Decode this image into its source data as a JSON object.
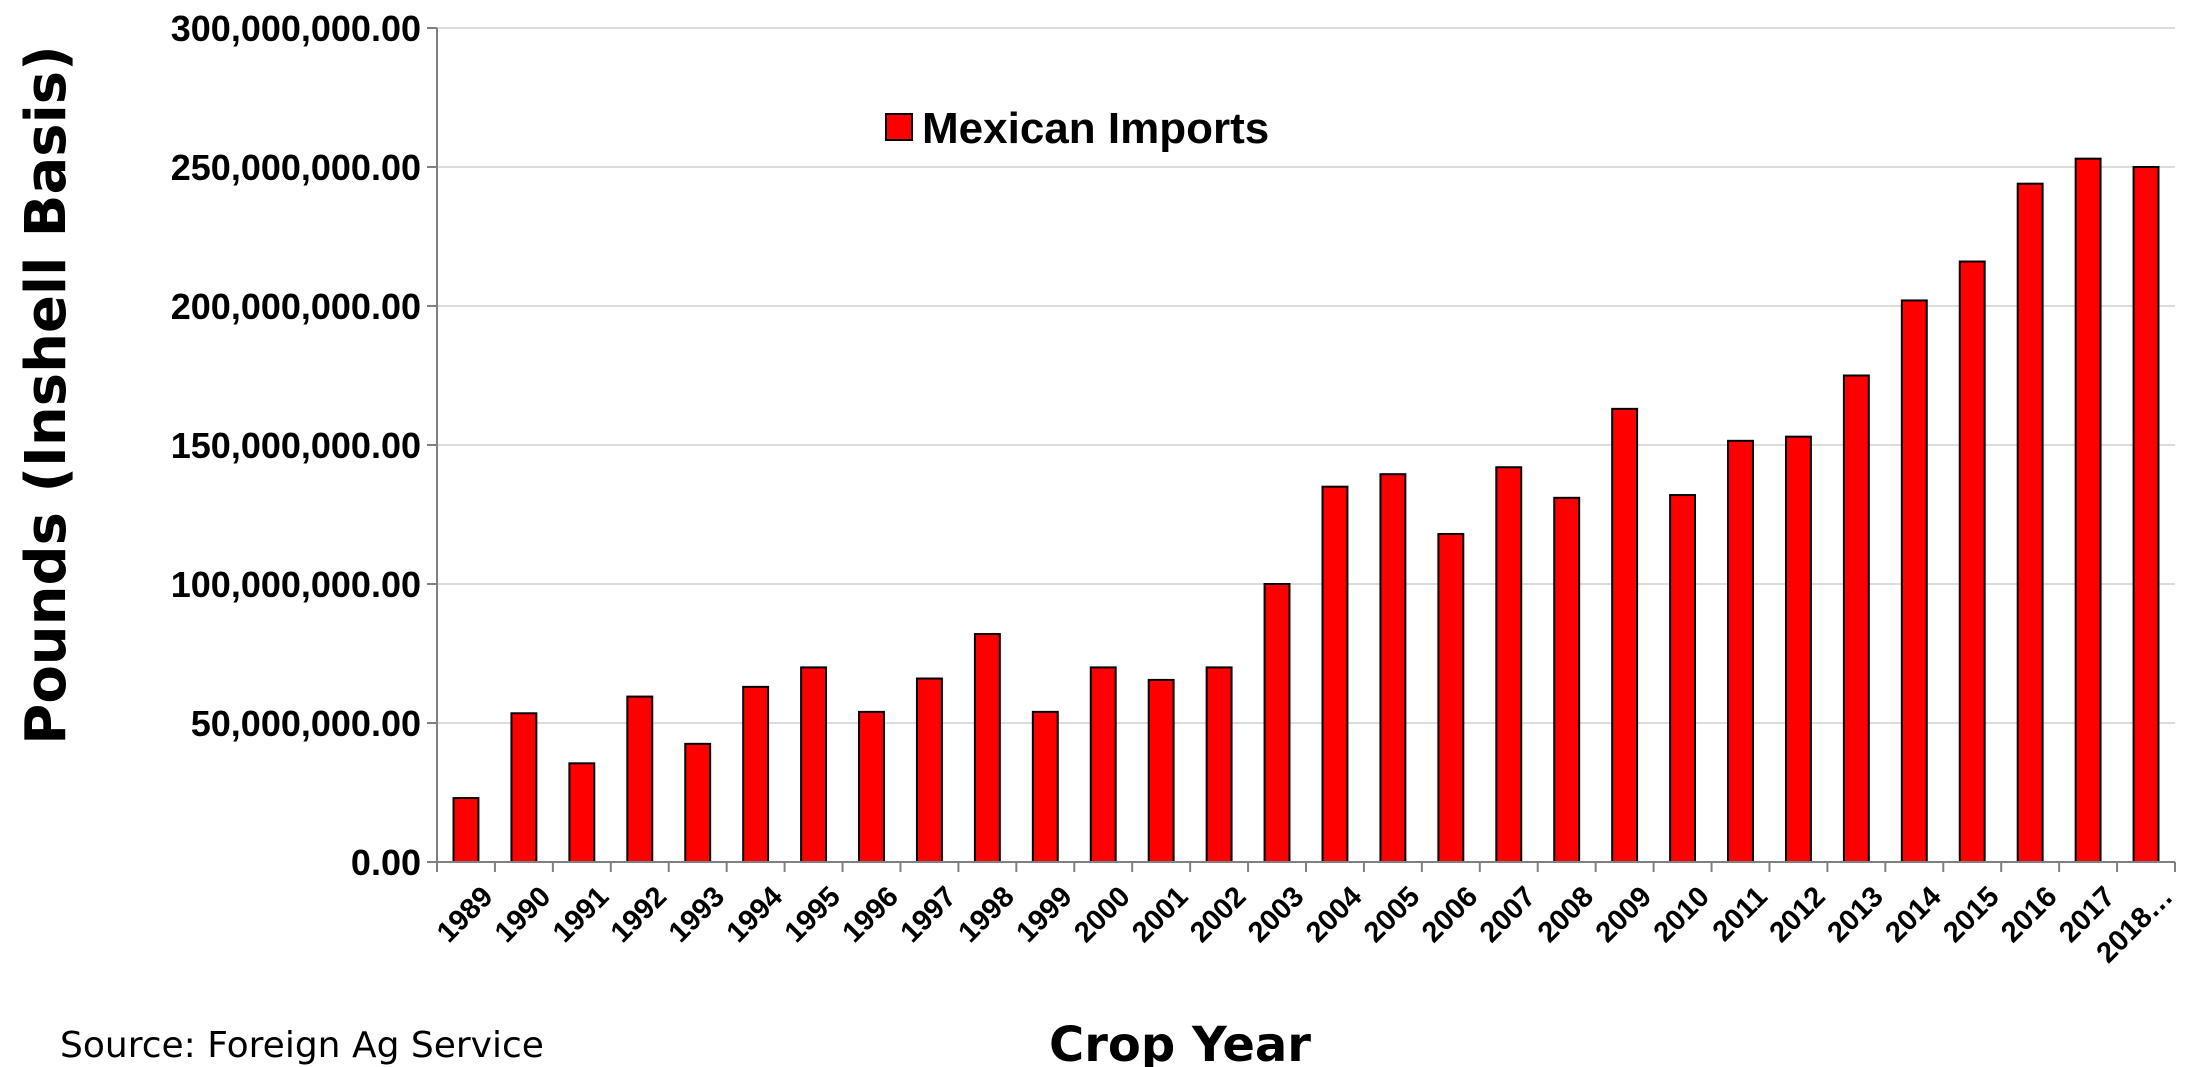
{
  "chart_data": {
    "type": "bar",
    "categories": [
      "1989",
      "1990",
      "1991",
      "1992",
      "1993",
      "1994",
      "1995",
      "1996",
      "1997",
      "1998",
      "1999",
      "2000",
      "2001",
      "2002",
      "2003",
      "2004",
      "2005",
      "2006",
      "2007",
      "2008",
      "2009",
      "2010",
      "2011",
      "2012",
      "2013",
      "2014",
      "2015",
      "2016",
      "2017",
      "2018…"
    ],
    "series": [
      {
        "name": "Mexican Imports",
        "color": "#ff0000",
        "values": [
          23000000,
          53500000,
          35500000,
          59500000,
          42500000,
          63000000,
          70000000,
          54000000,
          66000000,
          82000000,
          54000000,
          70000000,
          65500000,
          70000000,
          100000000,
          135000000,
          139500000,
          118000000,
          142000000,
          131000000,
          163000000,
          132000000,
          151500000,
          153000000,
          175000000,
          202000000,
          216000000,
          244000000,
          253000000,
          250000000
        ]
      }
    ],
    "xlabel": "Crop Year",
    "ylabel": "Pounds (Inshell Basis)",
    "ylim": [
      0,
      300000000
    ],
    "yticks": [
      "0.00",
      "50,000,000.00",
      "100,000,000.00",
      "150,000,000.00",
      "200,000,000.00",
      "250,000,000.00",
      "300,000,000.00"
    ],
    "grid": true,
    "legend_position": "top-center"
  },
  "source": "Source:  Foreign Ag Service"
}
